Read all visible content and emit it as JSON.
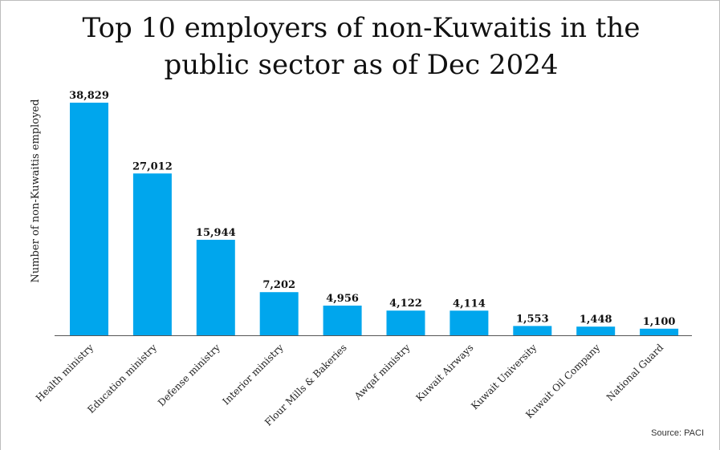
{
  "chart_data": {
    "type": "bar",
    "title": "Top 10 employers of non-Kuwaitis in the public sector as of Dec 2024",
    "ylabel": "Number of non-Kuwaitis employed",
    "xlabel": "",
    "categories": [
      "Health ministry",
      "Education ministry",
      "Defense ministry",
      "Interior ministry",
      "Flour Mills & Bakeries",
      "Awqaf ministry",
      "Kuwait Airways",
      "Kuwait University",
      "Kuwait Oil Company",
      "National Guard"
    ],
    "values": [
      38829,
      27012,
      15944,
      7202,
      4956,
      4122,
      4114,
      1553,
      1448,
      1100
    ],
    "value_labels": [
      "38,829",
      "27,012",
      "15,944",
      "7,202",
      "4,956",
      "4,122",
      "4,114",
      "1,553",
      "1,448",
      "1,100"
    ],
    "ylim": [
      0,
      38829
    ],
    "grid": false,
    "legend": "none",
    "bar_color": "#00a6ed",
    "source": "Source: PACI"
  }
}
